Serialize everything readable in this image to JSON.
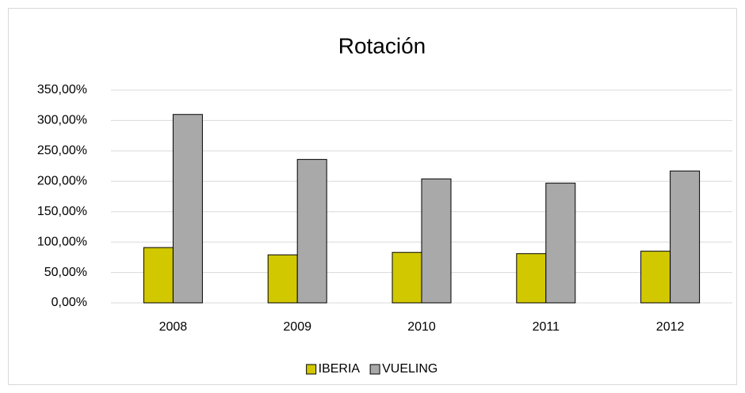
{
  "chart_data": {
    "type": "bar",
    "title": "Rotación",
    "categories": [
      "2008",
      "2009",
      "2010",
      "2011",
      "2012"
    ],
    "series": [
      {
        "name": "IBERIA",
        "color": "#d1c800",
        "values": [
          91,
          79,
          83,
          81,
          85
        ]
      },
      {
        "name": "VUELING",
        "color": "#a9a9a9",
        "values": [
          310,
          236,
          204,
          197,
          217
        ]
      }
    ],
    "ylim": [
      0,
      350
    ],
    "yticks": [
      {
        "value": 0,
        "label": "0,00%"
      },
      {
        "value": 50,
        "label": "50,00%"
      },
      {
        "value": 100,
        "label": "100,00%"
      },
      {
        "value": 150,
        "label": "150,00%"
      },
      {
        "value": 200,
        "label": "200,00%"
      },
      {
        "value": 250,
        "label": "250,00%"
      },
      {
        "value": 300,
        "label": "300,00%"
      },
      {
        "value": 350,
        "label": "350,00%"
      }
    ],
    "grid": true,
    "legend": "bottom"
  }
}
